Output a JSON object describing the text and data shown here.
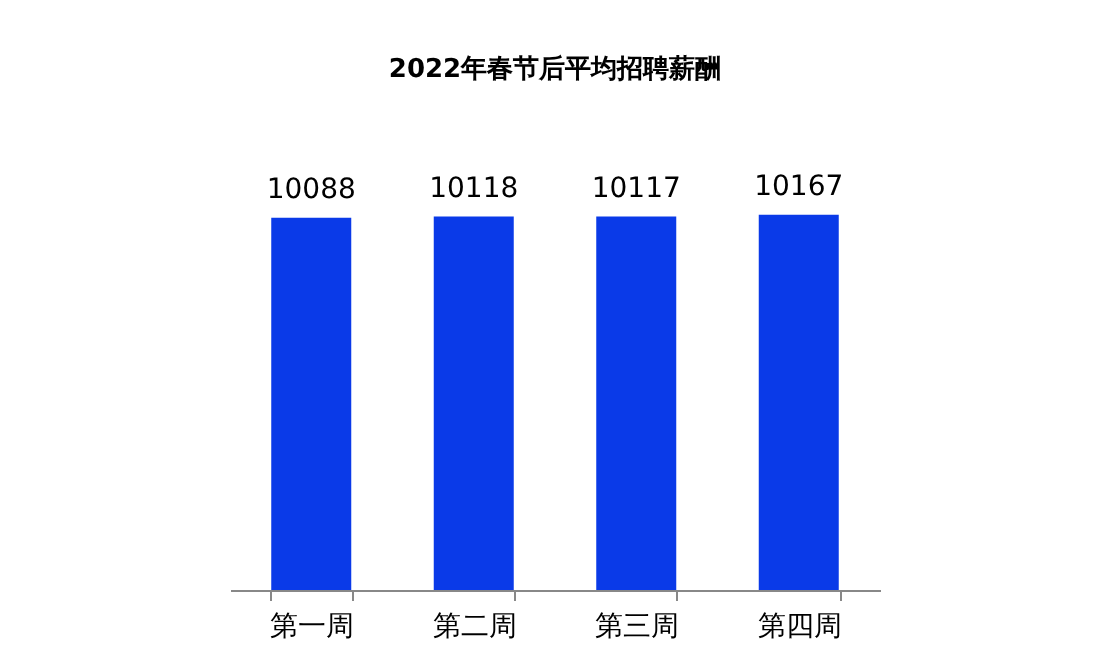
{
  "chart_data": {
    "type": "bar",
    "title": "2022年春节后平均招聘薪酬",
    "categories": [
      "第一周",
      "第二周",
      "第三周",
      "第四周"
    ],
    "values": [
      10088,
      10118,
      10117,
      10167
    ],
    "color": "#0a3ae8",
    "tick_labels": "x",
    "data_labels": true
  }
}
